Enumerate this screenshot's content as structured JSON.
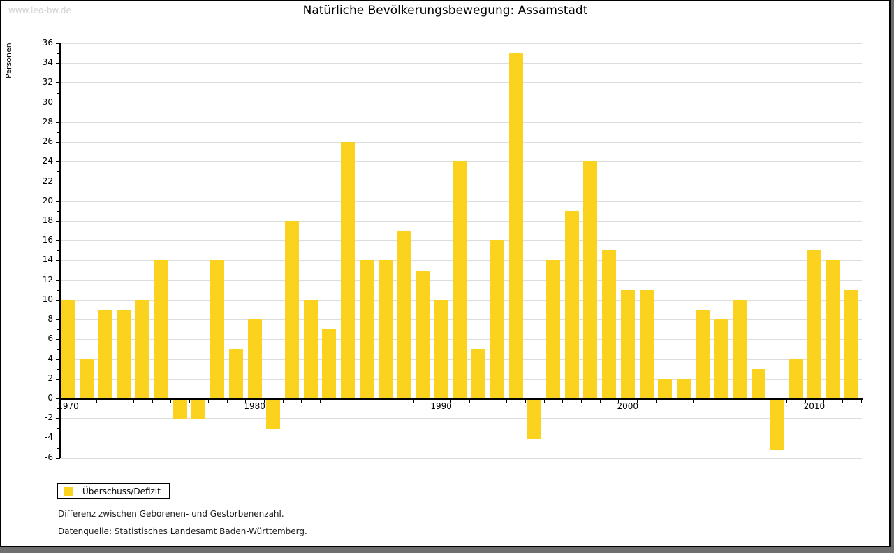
{
  "watermark": "www.leo-bw.de",
  "chart_data": {
    "type": "bar",
    "title": "Natürliche Bevölkerungsbewegung: Assamstadt",
    "ylabel": "Personen",
    "xlabel": "",
    "legend": "Überschuss/Defizit",
    "legend_position": "bottom-left",
    "grid": true,
    "ylim": [
      -6,
      36
    ],
    "ytick_step": 2,
    "x_labeled_years": [
      1970,
      1980,
      1990,
      2000,
      2010
    ],
    "bar_color": "#FBD31E",
    "categories": [
      1970,
      1971,
      1972,
      1973,
      1974,
      1975,
      1976,
      1977,
      1978,
      1979,
      1980,
      1981,
      1982,
      1983,
      1984,
      1985,
      1986,
      1987,
      1988,
      1989,
      1990,
      1991,
      1992,
      1993,
      1994,
      1995,
      1996,
      1997,
      1998,
      1999,
      2000,
      2001,
      2002,
      2003,
      2004,
      2005,
      2006,
      2007,
      2008,
      2009,
      2010,
      2011,
      2012
    ],
    "values": [
      10,
      4,
      9,
      9,
      10,
      14,
      -2,
      -2,
      14,
      5,
      8,
      -3,
      18,
      10,
      7,
      26,
      14,
      14,
      17,
      13,
      10,
      24,
      5,
      16,
      35,
      -4,
      14,
      19,
      24,
      15,
      11,
      11,
      2,
      2,
      9,
      8,
      10,
      3,
      -5,
      4,
      15,
      14,
      11
    ]
  },
  "footnotes": [
    "Differenz zwischen Geborenen- und Gestorbenenzahl.",
    "Datenquelle: Statistisches Landesamt Baden-Württemberg."
  ]
}
